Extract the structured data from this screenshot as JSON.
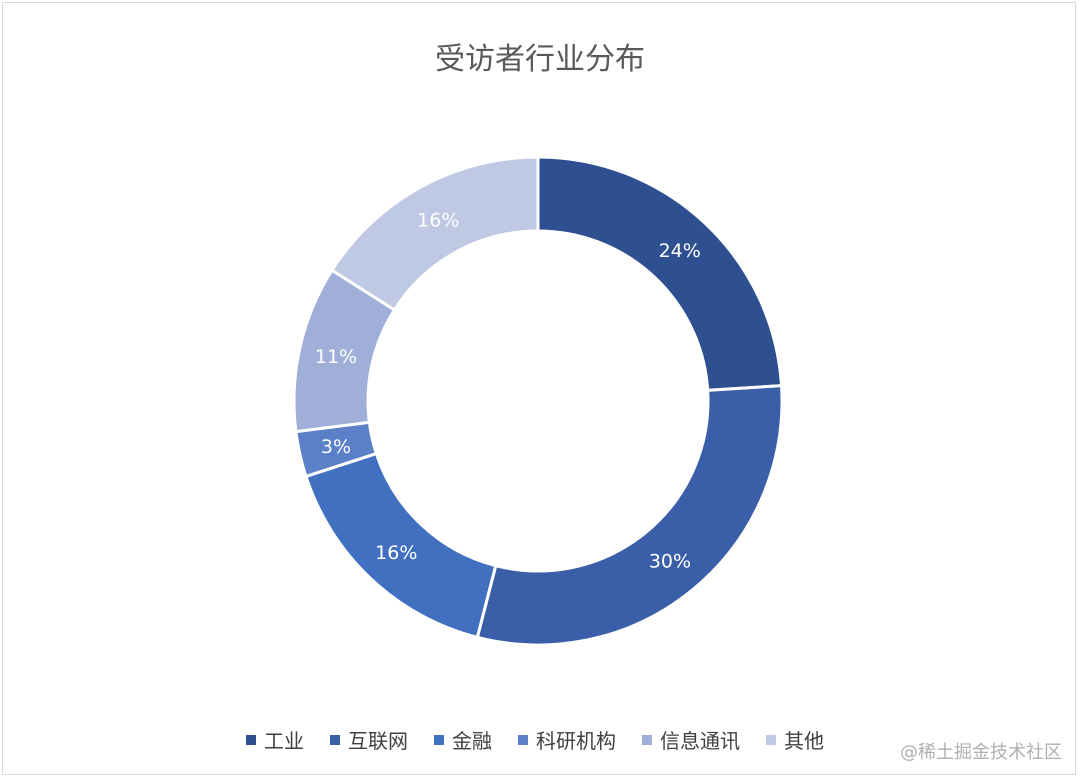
{
  "chart_data": {
    "type": "pie",
    "variant": "donut",
    "title": "受访者行业分布",
    "categories": [
      "工业",
      "互联网",
      "金融",
      "科研机构",
      "信息通讯",
      "其他"
    ],
    "values": [
      24,
      30,
      16,
      3,
      11,
      16
    ],
    "labels": [
      "24%",
      "30%",
      "16%",
      "3%",
      "11%",
      "16%"
    ],
    "colors": [
      "#2e5090",
      "#3a5fa8",
      "#4270c0",
      "#5b80c8",
      "#a0afd8",
      "#c0c9e4"
    ],
    "legend": "bottom"
  },
  "watermark": "@稀土掘金技术社区"
}
